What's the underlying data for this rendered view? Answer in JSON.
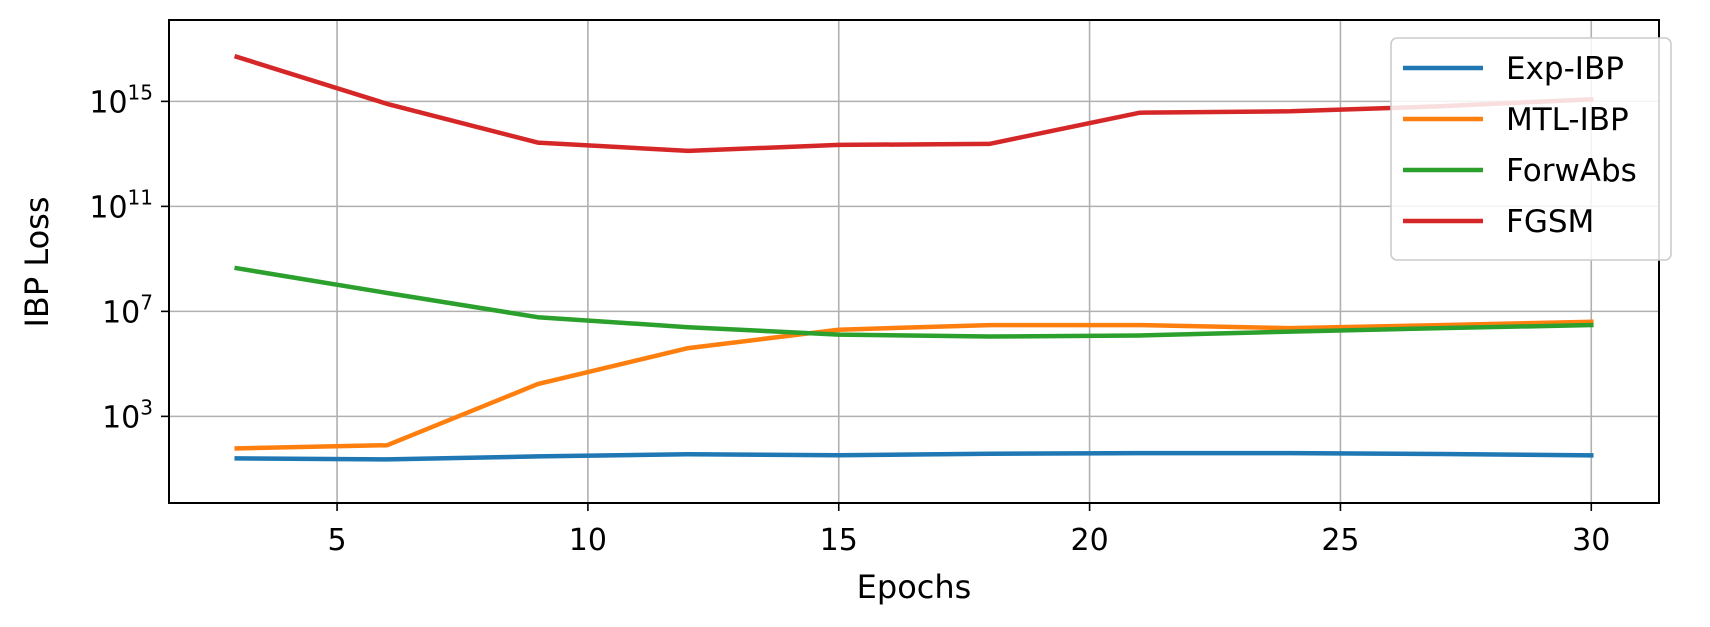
{
  "chart_data": {
    "type": "line",
    "title": "",
    "xlabel": "Epochs",
    "ylabel": "IBP Loss",
    "yscale": "log",
    "xlim": [
      1.65,
      31.35
    ],
    "ylim_log10": [
      -0.3,
      18.1
    ],
    "xticks": [
      5,
      10,
      15,
      20,
      25,
      30
    ],
    "yticks": [
      {
        "base": "10",
        "exponent": "3",
        "value": 1000.0
      },
      {
        "base": "10",
        "exponent": "7",
        "value": 10000000.0
      },
      {
        "base": "10",
        "exponent": "11",
        "value": 100000000000.0
      },
      {
        "base": "10",
        "exponent": "15",
        "value": 1000000000000000.0
      }
    ],
    "grid": true,
    "legend_position": "top-right",
    "x": [
      3,
      6,
      9,
      12,
      15,
      18,
      21,
      24,
      27,
      30
    ],
    "series": [
      {
        "name": "Exp-IBP",
        "color": "#1f77b4",
        "values": [
          25,
          23,
          30,
          36,
          33,
          38,
          40,
          40,
          37,
          33
        ]
      },
      {
        "name": "MTL-IBP",
        "color": "#ff7f0e",
        "values": [
          60,
          80,
          17000,
          400000,
          2000000,
          3000000,
          3000000,
          2300000,
          3000000,
          4000000
        ]
      },
      {
        "name": "ForwAbs",
        "color": "#2ca02c",
        "values": [
          440000000,
          50000000,
          6000000,
          2500000,
          1300000,
          1100000,
          1200000,
          1700000,
          2300000,
          3000000
        ]
      },
      {
        "name": "FGSM",
        "color": "#d62728",
        "values": [
          5e+16,
          800000000000000.0,
          27000000000000.0,
          13000000000000.0,
          22000000000000.0,
          24000000000000.0,
          370000000000000.0,
          420000000000000.0,
          650000000000000.0,
          1200000000000000.0
        ]
      }
    ]
  }
}
